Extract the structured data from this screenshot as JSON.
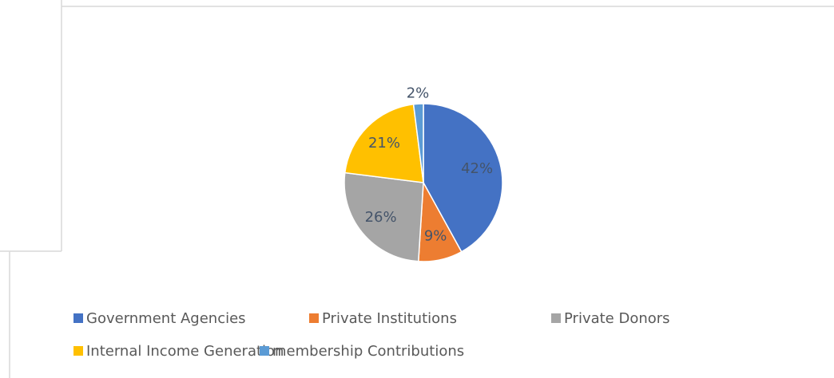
{
  "chart_data": {
    "type": "pie",
    "categories": [
      "Government Agencies",
      "Private Institutions",
      "Private Donors",
      "Internal Income Generation",
      "membership Contributions"
    ],
    "values": [
      42,
      9,
      26,
      21,
      2
    ],
    "value_labels": [
      "42%",
      "9%",
      "26%",
      "21%",
      "2%"
    ],
    "colors": [
      "#4472c4",
      "#ed7d31",
      "#a5a5a5",
      "#ffc000",
      "#5b9bd5"
    ],
    "legend": "bottom"
  }
}
